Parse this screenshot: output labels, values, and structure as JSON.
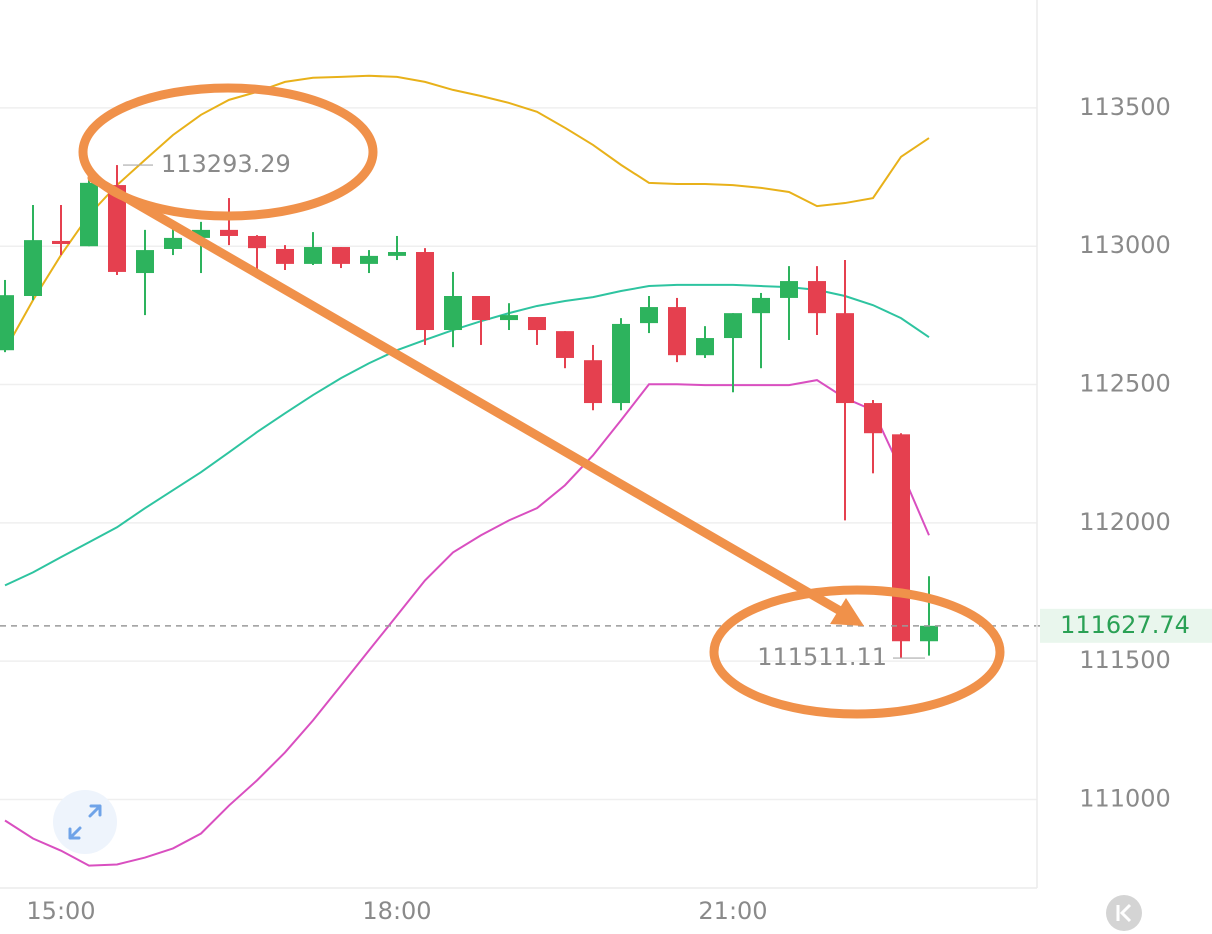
{
  "chart_data": {
    "type": "candlestick",
    "categories": [
      null,
      null,
      "15:00",
      null,
      null,
      null,
      null,
      null,
      null,
      null,
      null,
      null,
      null,
      null,
      "18:00",
      null,
      null,
      null,
      null,
      null,
      null,
      null,
      null,
      null,
      null,
      null,
      "21:00",
      null,
      null,
      null,
      null,
      null,
      null,
      null
    ],
    "open": [
      112624,
      112820,
      113019,
      113000,
      113221,
      112903,
      112990,
      113030,
      113059,
      113037,
      112990,
      112936,
      112997,
      112936,
      112965,
      112979,
      112697,
      112820,
      112733,
      112744,
      112693,
      112588,
      112433,
      112722,
      112780,
      112606,
      112668,
      112758,
      112813,
      112874,
      112758,
      112433,
      112320,
      111572
    ],
    "high": [
      112878,
      113149,
      113149,
      113258,
      113293.29,
      113059,
      113077,
      113088,
      113174,
      113040,
      113004,
      113051,
      112997,
      112986,
      113037,
      112993,
      112907,
      112820,
      112794,
      112744,
      112693,
      112643,
      112740,
      112820,
      112813,
      112711,
      112758,
      112831,
      112928,
      112928,
      112950,
      112444,
      112324,
      111807
    ],
    "low": [
      112617,
      112805,
      112968,
      113000,
      112896,
      112751,
      112968,
      112903,
      113004,
      112896,
      112914,
      112932,
      112921,
      112903,
      112950,
      112643,
      112635,
      112643,
      112697,
      112643,
      112559,
      112407,
      112407,
      112686,
      112581,
      112596,
      112472,
      112559,
      112661,
      112679,
      112009,
      112179,
      111511.11,
      111520
    ],
    "close": [
      112823,
      113022,
      113008,
      113229,
      112907,
      112986,
      113030,
      113059,
      113037,
      112993,
      112936,
      112997,
      112936,
      112965,
      112979,
      112697,
      112820,
      112733,
      112751,
      112697,
      112596,
      112433,
      112719,
      112780,
      112606,
      112668,
      112758,
      112813,
      112874,
      112758,
      112433,
      112324,
      111572,
      111627.74
    ],
    "up_color": "#2db35d",
    "down_color": "#e5404f",
    "overlays": [
      {
        "color": "#e8b11a",
        "values": [
          112624,
          112805,
          112968,
          113113,
          113221,
          113312,
          113402,
          113475,
          113529,
          113558,
          113594,
          113609,
          113612,
          113616,
          113612,
          113594,
          113565,
          113543,
          113518,
          113486,
          113428,
          113366,
          113294,
          113229,
          113225,
          113225,
          113221,
          113211,
          113196,
          113145,
          113156,
          113174,
          113323,
          113391
        ]
      },
      {
        "color": "#2ec4a0",
        "values": [
          111774,
          111821,
          111876,
          111930,
          111984,
          112053,
          112118,
          112183,
          112255,
          112328,
          112396,
          112462,
          112523,
          112577,
          112624,
          112661,
          112697,
          112729,
          112758,
          112784,
          112802,
          112816,
          112838,
          112856,
          112860,
          112860,
          112860,
          112856,
          112852,
          112842,
          112820,
          112787,
          112740,
          112671
        ]
      },
      {
        "color": "#d94fc0",
        "values": [
          110924,
          110859,
          110815,
          110761,
          110765,
          110790,
          110823,
          110877,
          110978,
          111069,
          111170,
          111286,
          111412,
          111539,
          111665,
          111792,
          111893,
          111955,
          112009,
          112053,
          112136,
          112244,
          112371,
          112501,
          112501,
          112498,
          112498,
          112498,
          112498,
          112516,
          112451,
          112407,
          112190,
          111955
        ]
      }
    ],
    "ylim": [
      110680,
      113890
    ],
    "yticks": [
      111000,
      111500,
      112000,
      112500,
      113000,
      113500
    ],
    "grid": true,
    "last_price": 111627.74,
    "max_label": {
      "value": 113293.29,
      "index": 4
    },
    "min_label": {
      "value": 111511.11,
      "index": 32
    }
  }
}
